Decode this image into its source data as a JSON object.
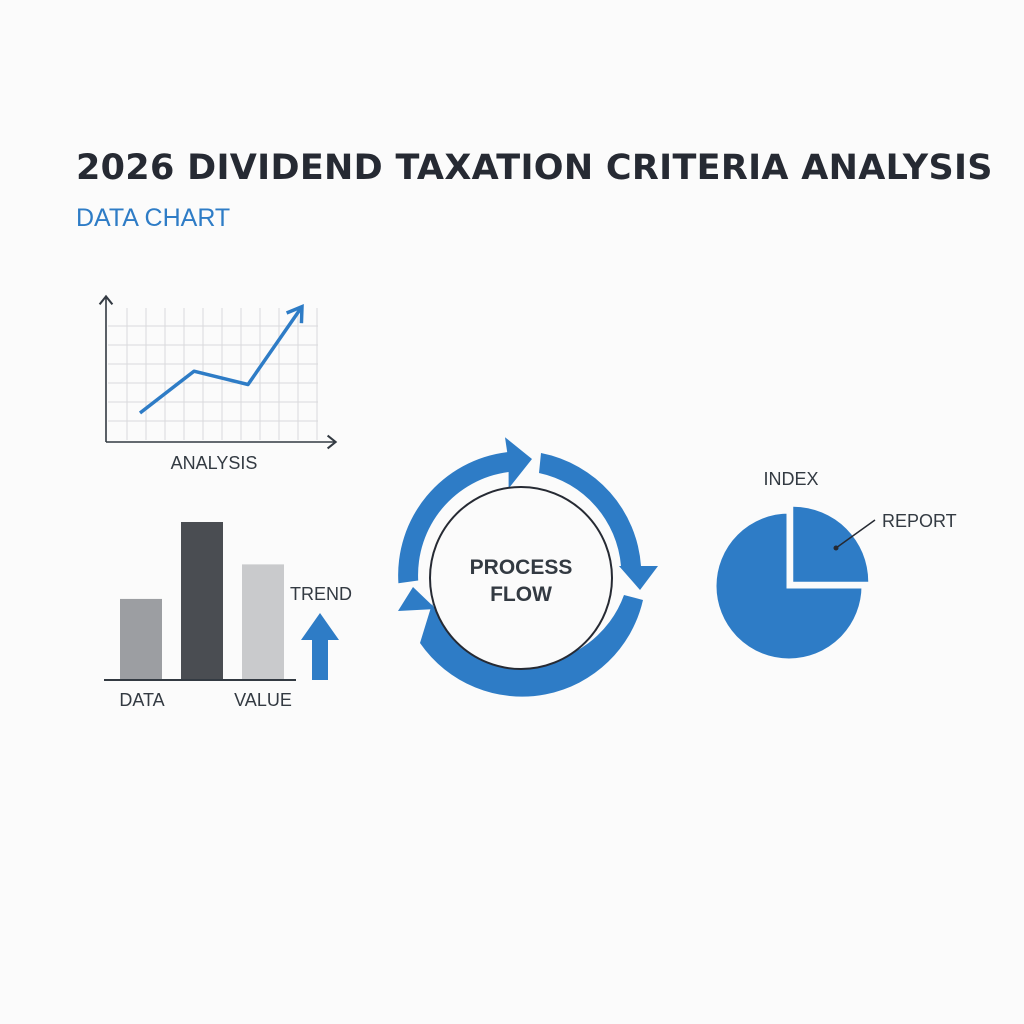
{
  "header": {
    "title": "2026 DIVIDEND TAXATION CRITERIA ANALYSIS",
    "subtitle": "DATA CHART"
  },
  "colors": {
    "accent": "#2e7cc6",
    "dark": "#4a4d52",
    "mid_gray": "#9c9ea2",
    "light_gray": "#c9cacc",
    "title": "#262a33"
  },
  "chart_data": [
    {
      "type": "line",
      "xlabel": "ANALYSIS",
      "x": [
        0,
        1,
        2,
        3
      ],
      "values": [
        1,
        3.2,
        2.5,
        6.6
      ],
      "grid": true,
      "trend_arrow": true
    },
    {
      "type": "bar",
      "categories_labels": [
        "DATA",
        "VALUE"
      ],
      "values": [
        0.51,
        1.0,
        0.73
      ],
      "colors": [
        "#9c9ea2",
        "#4a4d52",
        "#c9cacc"
      ],
      "side_label": "TREND",
      "side_icon": "up-arrow-icon"
    },
    {
      "type": "cycle",
      "center_label_lines": [
        "PROCESS",
        "FLOW"
      ],
      "arrow_count": 2
    },
    {
      "type": "pie",
      "title": "INDEX",
      "slices": [
        {
          "label": "REPORT",
          "value": 25,
          "exploded": true
        },
        {
          "label": "",
          "value": 75,
          "exploded": false
        }
      ],
      "color": "#2e7cc6"
    }
  ]
}
